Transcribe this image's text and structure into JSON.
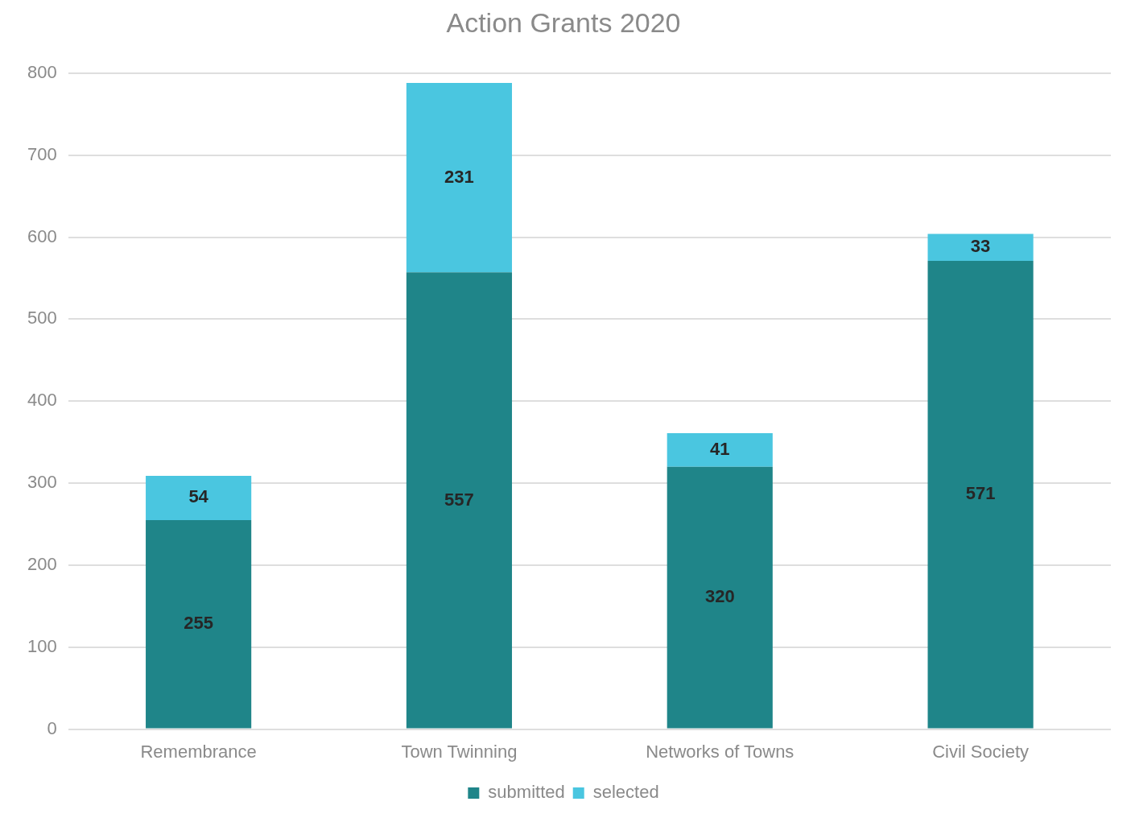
{
  "chart_data": {
    "type": "bar",
    "title": "Action Grants 2020",
    "categories": [
      "Remembrance",
      "Town Twinning",
      "Networks of Towns",
      "Civil Society"
    ],
    "stacked": true,
    "series": [
      {
        "name": "submitted",
        "color": "#1f8589",
        "values": [
          255,
          557,
          320,
          571
        ]
      },
      {
        "name": "selected",
        "color": "#4ac6e0",
        "values": [
          54,
          231,
          41,
          33
        ]
      }
    ],
    "ylim": [
      0,
      800
    ],
    "yticks": [
      0,
      100,
      200,
      300,
      400,
      500,
      600,
      700,
      800
    ],
    "grid": "y",
    "legend": "bottom",
    "data_labels": true
  }
}
